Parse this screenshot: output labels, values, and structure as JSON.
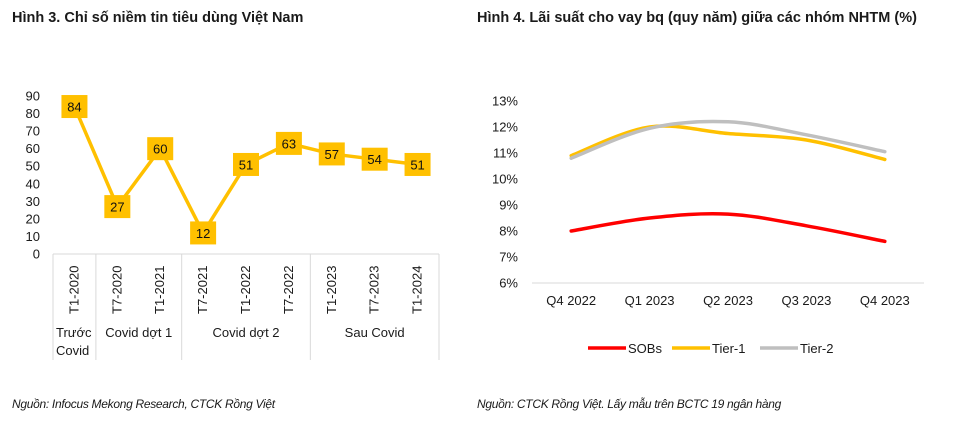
{
  "left_title": "Hình 3. Chỉ số niềm tin tiêu dùng Việt Nam",
  "right_title": "Hình 4. Lãi suất cho vay bq (quy năm) giữa các nhóm NHTM (%)",
  "left_source": "Nguồn: Infocus Mekong Research, CTCK Rồng Việt",
  "right_source": "Nguồn: CTCK Rồng Việt. Lấy mẫu trên BCTC 19 ngân hàng",
  "chart_data": [
    {
      "type": "line",
      "title": "Hình 3. Chỉ số niềm tin tiêu dùng Việt Nam",
      "xlabel": "",
      "ylabel": "",
      "ylim": [
        0,
        90
      ],
      "yticks": [
        "0",
        "10",
        "20",
        "30",
        "40",
        "50",
        "60",
        "70",
        "80",
        "90"
      ],
      "categories": [
        "T1-2020",
        "T7-2020",
        "T1-2021",
        "T7-2021",
        "T1-2022",
        "T7-2022",
        "T1-2023",
        "T7-2023",
        "T1-2024"
      ],
      "groups": [
        {
          "label": "Trước Covid",
          "span": 1
        },
        {
          "label": "Covid dợt 1",
          "span": 2
        },
        {
          "label": "Covid dợt 2",
          "span": 3
        },
        {
          "label": "Sau Covid",
          "span": 3
        }
      ],
      "series": [
        {
          "name": "Chỉ số niềm tin tiêu dùng",
          "color": "#FFC000",
          "values": [
            84,
            27,
            60,
            12,
            51,
            63,
            57,
            54,
            51
          ],
          "labels": [
            "84",
            "27",
            "60",
            "12",
            "51",
            "63",
            "57",
            "54",
            "51"
          ]
        }
      ],
      "grid": false,
      "legend": "none"
    },
    {
      "type": "line",
      "title": "Hình 4. Lãi suất cho vay bq (quy năm) giữa các nhóm NHTM (%)",
      "xlabel": "",
      "ylabel": "",
      "ylim": [
        6,
        13
      ],
      "yticks": [
        "6%",
        "7%",
        "8%",
        "9%",
        "10%",
        "11%",
        "12%",
        "13%"
      ],
      "categories": [
        "Q4 2022",
        "Q1 2023",
        "Q2 2023",
        "Q3 2023",
        "Q4 2023"
      ],
      "series": [
        {
          "name": "SOBs",
          "color": "#FF0000",
          "values": [
            8.0,
            8.5,
            8.65,
            8.2,
            7.6
          ]
        },
        {
          "name": "Tier-1",
          "color": "#FFC000",
          "values": [
            10.9,
            12.0,
            11.75,
            11.5,
            10.75
          ]
        },
        {
          "name": "Tier-2",
          "color": "#BFBFBF",
          "values": [
            10.8,
            11.95,
            12.2,
            11.7,
            11.05
          ]
        }
      ],
      "smooth": true,
      "grid": false,
      "legend": "bottom"
    }
  ]
}
